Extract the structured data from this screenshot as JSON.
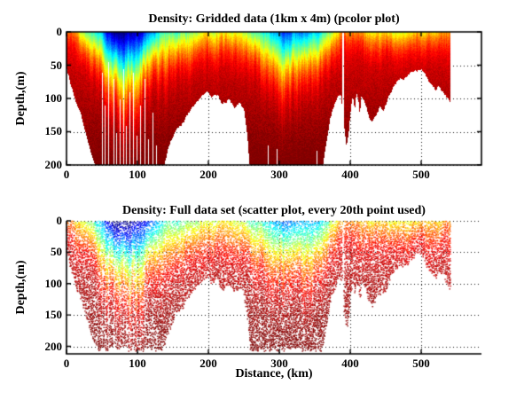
{
  "figure": {
    "background": "#ffffff",
    "border_color": "#000000",
    "grid_style": "dotted"
  },
  "subplots": [
    {
      "title": "Density: Gridded data (1km x 4m) (pcolor plot)",
      "ylabel": "Depth,(m)",
      "xticks": [
        "0",
        "100",
        "200",
        "300",
        "400",
        "500"
      ],
      "yticks": [
        "0",
        "50",
        "100",
        "150",
        "200"
      ]
    },
    {
      "title": "Density: Full data set (scatter plot, every 20th point used)",
      "ylabel": "Depth,(m)",
      "xlabel": "Distance, (km)",
      "xticks": [
        "0",
        "100",
        "200",
        "300",
        "400",
        "500"
      ],
      "yticks": [
        "0",
        "50",
        "100",
        "150",
        "200"
      ]
    }
  ],
  "chart_data": [
    {
      "type": "heatmap",
      "title": "Density: Gridded data (1km x 4m) (pcolor plot)",
      "xlabel": "",
      "ylabel": "Depth,(m)",
      "xlim": [
        0,
        585
      ],
      "ylim": [
        0,
        200
      ],
      "y_reversed": true,
      "xticks": [
        0,
        100,
        200,
        300,
        400,
        500
      ],
      "yticks": [
        0,
        50,
        100,
        150,
        200
      ],
      "grid": "dotted",
      "box": true,
      "colormap": "jet",
      "colormap_stops": {
        "0.0": "#000080",
        "0.125": "#0000ff",
        "0.375": "#00ffff",
        "0.625": "#ffff00",
        "0.875": "#ff0000",
        "1.0": "#800000"
      },
      "grid_resolution": "1km x 4m",
      "data_extent_km": [
        0,
        541
      ],
      "field_ref": "density_field"
    },
    {
      "type": "scatter",
      "title": "Density: Full data set (scatter plot, every 20th point used)",
      "xlabel": "Distance, (km)",
      "ylabel": "Depth,(m)",
      "xlim": [
        0,
        585
      ],
      "ylim": [
        0,
        212
      ],
      "y_reversed": true,
      "xticks": [
        0,
        100,
        200,
        300,
        400,
        500
      ],
      "yticks": [
        0,
        50,
        100,
        150,
        200
      ],
      "grid": "dotted",
      "box": false,
      "colormap": "jet",
      "subsample": "every 20th point",
      "data_extent_km": [
        0,
        541
      ],
      "field_ref": "density_field"
    }
  ],
  "density_field": {
    "description": "Ocean density transect. Control points: [distance_km, seafloor_depth_m (white below = no data), surface_value (0=light/blue .. 1=dense/dark-red on jet scale), mixing_depth_m]. Value saturates to ~0.95 (dark red) below the mixing depth. Fresh (blue) surface pool near 60-120 km, cooler cyan pool near 285-360 km, shallow banks at 130-255 km and 440-541 km, data gap column near 388-391 km.",
    "profile": [
      [
        0,
        55,
        0.78,
        25
      ],
      [
        6,
        80,
        0.8,
        25
      ],
      [
        12,
        100,
        0.72,
        28
      ],
      [
        20,
        125,
        0.63,
        30
      ],
      [
        28,
        160,
        0.58,
        33
      ],
      [
        36,
        190,
        0.52,
        36
      ],
      [
        42,
        205,
        0.42,
        40
      ],
      [
        48,
        205,
        0.34,
        46
      ],
      [
        54,
        205,
        0.24,
        52
      ],
      [
        60,
        205,
        0.12,
        60
      ],
      [
        66,
        205,
        0.06,
        66
      ],
      [
        74,
        205,
        0.03,
        70
      ],
      [
        82,
        205,
        0.03,
        72
      ],
      [
        90,
        205,
        0.06,
        70
      ],
      [
        98,
        205,
        0.1,
        66
      ],
      [
        106,
        205,
        0.15,
        62
      ],
      [
        114,
        205,
        0.22,
        58
      ],
      [
        122,
        205,
        0.31,
        52
      ],
      [
        130,
        205,
        0.4,
        48
      ],
      [
        137,
        200,
        0.45,
        45
      ],
      [
        144,
        170,
        0.5,
        42
      ],
      [
        152,
        152,
        0.52,
        40
      ],
      [
        160,
        140,
        0.5,
        40
      ],
      [
        168,
        128,
        0.53,
        38
      ],
      [
        176,
        114,
        0.57,
        36
      ],
      [
        184,
        104,
        0.6,
        34
      ],
      [
        192,
        92,
        0.62,
        32
      ],
      [
        198,
        86,
        0.64,
        32
      ],
      [
        204,
        99,
        0.64,
        32
      ],
      [
        212,
        94,
        0.66,
        30
      ],
      [
        220,
        108,
        0.66,
        30
      ],
      [
        228,
        100,
        0.64,
        30
      ],
      [
        236,
        112,
        0.62,
        32
      ],
      [
        244,
        104,
        0.6,
        32
      ],
      [
        250,
        118,
        0.58,
        34
      ],
      [
        254,
        150,
        0.55,
        36
      ],
      [
        258,
        205,
        0.52,
        38
      ],
      [
        266,
        205,
        0.5,
        40
      ],
      [
        274,
        205,
        0.47,
        42
      ],
      [
        282,
        205,
        0.42,
        46
      ],
      [
        290,
        205,
        0.35,
        50
      ],
      [
        298,
        205,
        0.28,
        54
      ],
      [
        306,
        205,
        0.24,
        58
      ],
      [
        314,
        205,
        0.28,
        58
      ],
      [
        322,
        205,
        0.3,
        56
      ],
      [
        330,
        205,
        0.3,
        55
      ],
      [
        338,
        205,
        0.32,
        52
      ],
      [
        346,
        205,
        0.34,
        48
      ],
      [
        354,
        205,
        0.38,
        44
      ],
      [
        360,
        205,
        0.44,
        40
      ],
      [
        366,
        165,
        0.52,
        36
      ],
      [
        371,
        132,
        0.58,
        32
      ],
      [
        377,
        108,
        0.63,
        30
      ],
      [
        382,
        96,
        0.66,
        28
      ],
      [
        386,
        90,
        0.7,
        27
      ],
      [
        389,
        120,
        0.75,
        25
      ],
      [
        392,
        150,
        0.78,
        24
      ],
      [
        394,
        172,
        0.79,
        23
      ],
      [
        397,
        155,
        0.8,
        22
      ],
      [
        400,
        120,
        0.8,
        22
      ],
      [
        403,
        95,
        0.79,
        23
      ],
      [
        406,
        118,
        0.78,
        24
      ],
      [
        408,
        90,
        0.77,
        24
      ],
      [
        411,
        100,
        0.76,
        25
      ],
      [
        413,
        125,
        0.75,
        25
      ],
      [
        415,
        95,
        0.74,
        25
      ],
      [
        418,
        100,
        0.73,
        26
      ],
      [
        422,
        112,
        0.71,
        26
      ],
      [
        426,
        128,
        0.69,
        27
      ],
      [
        430,
        135,
        0.68,
        28
      ],
      [
        434,
        128,
        0.67,
        28
      ],
      [
        438,
        118,
        0.67,
        28
      ],
      [
        442,
        112,
        0.68,
        28
      ],
      [
        446,
        118,
        0.69,
        27
      ],
      [
        450,
        108,
        0.7,
        26
      ],
      [
        454,
        96,
        0.69,
        26
      ],
      [
        458,
        88,
        0.67,
        26
      ],
      [
        462,
        80,
        0.65,
        26
      ],
      [
        466,
        74,
        0.65,
        26
      ],
      [
        470,
        70,
        0.66,
        26
      ],
      [
        475,
        72,
        0.67,
        26
      ],
      [
        480,
        66,
        0.68,
        25
      ],
      [
        485,
        60,
        0.69,
        25
      ],
      [
        490,
        58,
        0.7,
        24
      ],
      [
        495,
        56,
        0.71,
        24
      ],
      [
        500,
        58,
        0.72,
        24
      ],
      [
        505,
        64,
        0.72,
        24
      ],
      [
        510,
        72,
        0.71,
        25
      ],
      [
        515,
        80,
        0.71,
        26
      ],
      [
        520,
        88,
        0.72,
        26
      ],
      [
        524,
        80,
        0.73,
        26
      ],
      [
        528,
        86,
        0.74,
        26
      ],
      [
        532,
        92,
        0.75,
        26
      ],
      [
        536,
        98,
        0.76,
        26
      ],
      [
        540,
        104,
        0.77,
        26
      ],
      [
        541,
        108,
        0.77,
        26
      ]
    ],
    "gaps": [
      [
        49.5,
        1,
        60
      ],
      [
        53,
        0.8,
        110
      ],
      [
        58,
        1,
        45
      ],
      [
        61.5,
        0.8,
        130
      ],
      [
        66,
        1.2,
        70
      ],
      [
        70,
        0.8,
        150
      ],
      [
        74,
        1,
        100
      ],
      [
        79,
        1.2,
        55
      ],
      [
        83,
        0.8,
        140
      ],
      [
        88,
        1,
        90
      ],
      [
        93,
        1.2,
        60
      ],
      [
        98,
        0.8,
        155
      ],
      [
        103,
        1,
        110
      ],
      [
        109,
        1.2,
        70
      ],
      [
        115,
        0.8,
        160
      ],
      [
        121,
        1,
        120
      ],
      [
        126,
        0.8,
        170
      ],
      [
        283,
        1,
        170
      ],
      [
        296,
        1.2,
        175
      ],
      [
        352,
        0.8,
        178
      ],
      [
        388,
        3,
        0
      ]
    ]
  }
}
